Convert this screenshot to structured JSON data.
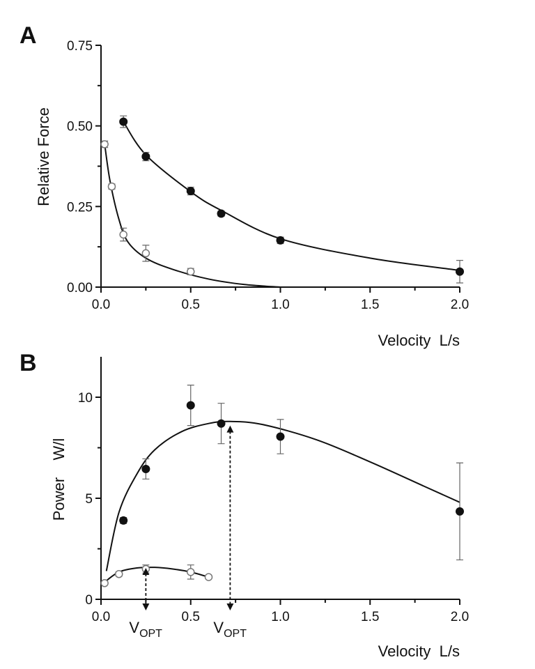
{
  "chart_data": [
    {
      "panel": "A",
      "type": "scatter",
      "title": "",
      "xlabel": "Velocity  L/s",
      "ylabel": "Relative Force",
      "xlim": [
        0,
        2.0
      ],
      "ylim": [
        0,
        0.75
      ],
      "xticks": [
        0.0,
        0.5,
        1.0,
        1.5,
        2.0
      ],
      "xtick_labels": [
        "0.0",
        "0.5",
        "1.0",
        "1.5",
        "2.0"
      ],
      "yticks": [
        0.0,
        0.25,
        0.5,
        0.75
      ],
      "ytick_labels": [
        "0.00",
        "0.25",
        "0.50",
        "0.75"
      ],
      "grid": false,
      "series": [
        {
          "marker": "filled-circle",
          "x": [
            0.125,
            0.25,
            0.5,
            0.67,
            1.0,
            2.0
          ],
          "y": [
            0.513,
            0.405,
            0.298,
            0.228,
            0.145,
            0.048
          ],
          "err": [
            0.018,
            0.013,
            0.012,
            0.008,
            0.01,
            0.035
          ],
          "fit": [
            [
              0.125,
              0.513
            ],
            [
              0.25,
              0.41
            ],
            [
              0.5,
              0.296
            ],
            [
              0.67,
              0.238
            ],
            [
              1.0,
              0.15
            ],
            [
              1.5,
              0.09
            ],
            [
              2.0,
              0.052
            ]
          ]
        },
        {
          "marker": "open-circle",
          "x": [
            0.02,
            0.06,
            0.125,
            0.25,
            0.5
          ],
          "y": [
            0.443,
            0.312,
            0.163,
            0.105,
            0.048
          ],
          "err": [
            0.01,
            0.008,
            0.02,
            0.025,
            0.01
          ],
          "fit": [
            [
              0.02,
              0.445
            ],
            [
              0.05,
              0.33
            ],
            [
              0.1,
              0.21
            ],
            [
              0.15,
              0.14
            ],
            [
              0.25,
              0.09
            ],
            [
              0.4,
              0.055
            ],
            [
              0.6,
              0.025
            ],
            [
              0.8,
              0.008
            ],
            [
              1.0,
              0.0
            ]
          ]
        }
      ]
    },
    {
      "panel": "B",
      "type": "scatter",
      "title": "",
      "xlabel": "Velocity  L/s",
      "ylabel": "Power    W/l",
      "xlim": [
        0,
        2.0
      ],
      "ylim": [
        0,
        12
      ],
      "xticks": [
        0.0,
        0.5,
        1.0,
        1.5,
        2.0
      ],
      "xtick_labels": [
        "0.0",
        "0.5",
        "1.0",
        "1.5",
        "2.0"
      ],
      "yticks": [
        0,
        5,
        10
      ],
      "ytick_labels": [
        "0",
        "5",
        "10"
      ],
      "grid": false,
      "series": [
        {
          "marker": "filled-circle",
          "x": [
            0.125,
            0.25,
            0.5,
            0.67,
            1.0,
            2.0
          ],
          "y": [
            3.9,
            6.45,
            9.6,
            8.7,
            8.05,
            4.35
          ],
          "err": [
            0.15,
            0.5,
            1.0,
            1.0,
            0.85,
            2.4
          ],
          "fit": [
            [
              0.03,
              1.4
            ],
            [
              0.1,
              4.3
            ],
            [
              0.2,
              6.2
            ],
            [
              0.3,
              7.4
            ],
            [
              0.45,
              8.3
            ],
            [
              0.6,
              8.7
            ],
            [
              0.72,
              8.8
            ],
            [
              0.9,
              8.65
            ],
            [
              1.2,
              7.9
            ],
            [
              1.5,
              6.8
            ],
            [
              1.8,
              5.6
            ],
            [
              2.0,
              4.8
            ]
          ]
        },
        {
          "marker": "open-circle",
          "x": [
            0.02,
            0.1,
            0.25,
            0.5,
            0.6
          ],
          "y": [
            0.8,
            1.25,
            1.5,
            1.35,
            1.1
          ],
          "err": [
            0.05,
            0.1,
            0.2,
            0.35,
            0.05
          ],
          "fit": [
            [
              0.02,
              0.85
            ],
            [
              0.1,
              1.35
            ],
            [
              0.2,
              1.55
            ],
            [
              0.3,
              1.58
            ],
            [
              0.4,
              1.5
            ],
            [
              0.5,
              1.35
            ],
            [
              0.6,
              1.1
            ]
          ]
        }
      ],
      "annotations": [
        {
          "text": "V",
          "sub": "OPT",
          "x": 0.25,
          "arrow_from_y": 1.55
        },
        {
          "text": "V",
          "sub": "OPT",
          "x": 0.72,
          "arrow_from_y": 8.6
        }
      ]
    }
  ]
}
